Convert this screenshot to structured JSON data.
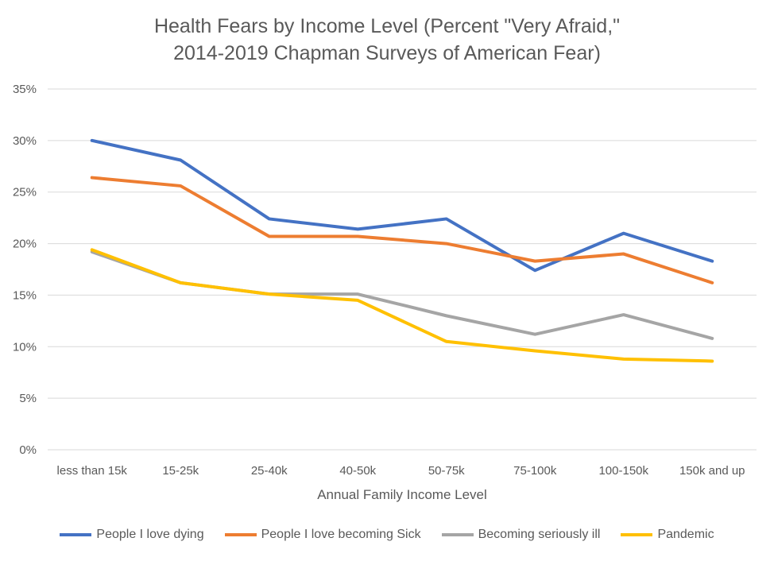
{
  "chart_data": {
    "type": "line",
    "title_line1": "Health Fears by Income Level (Percent \"Very Afraid,\"",
    "title_line2": "2014-2019 Chapman Surveys of American Fear)",
    "xlabel": "Annual Family Income Level",
    "ylabel": "",
    "categories": [
      "less than 15k",
      "15-25k",
      "25-40k",
      "40-50k",
      "50-75k",
      "75-100k",
      "100-150k",
      "150k and up"
    ],
    "ylim": [
      0,
      35
    ],
    "yticks": [
      0,
      5,
      10,
      15,
      20,
      25,
      30,
      35
    ],
    "ytick_suffix": "%",
    "grid": true,
    "legend_position": "bottom",
    "series": [
      {
        "name": "People I love dying",
        "color": "#4472C4",
        "values": [
          30.0,
          28.1,
          22.4,
          21.4,
          22.4,
          17.4,
          21.0,
          18.3
        ]
      },
      {
        "name": "People I love becoming Sick",
        "color": "#ED7D31",
        "values": [
          26.4,
          25.6,
          20.7,
          20.7,
          20.0,
          18.3,
          19.0,
          16.2
        ]
      },
      {
        "name": "Becoming seriously ill",
        "color": "#A5A5A5",
        "values": [
          19.2,
          16.2,
          15.1,
          15.1,
          13.0,
          11.2,
          13.1,
          10.8
        ]
      },
      {
        "name": "Pandemic",
        "color": "#FFC000",
        "values": [
          19.4,
          16.2,
          15.1,
          14.5,
          10.5,
          9.6,
          8.8,
          8.6
        ]
      }
    ]
  }
}
